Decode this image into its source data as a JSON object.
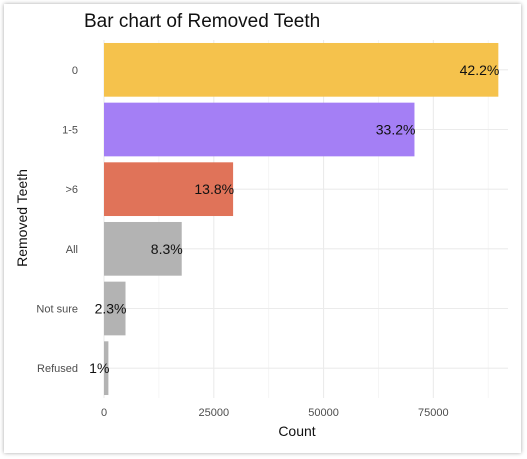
{
  "chart_data": {
    "type": "bar",
    "orientation": "horizontal",
    "title": "Bar chart of Removed Teeth",
    "xlabel": "Count",
    "ylabel": "Removed Teeth",
    "categories": [
      "0",
      "1-5",
      ">6",
      "All",
      "Not sure",
      "Refused"
    ],
    "values": [
      89800,
      70700,
      29400,
      17700,
      4900,
      1000
    ],
    "labels": [
      "42.2%",
      "33.2%",
      "13.8%",
      "8.3%",
      "2.3%",
      "1%"
    ],
    "colors": [
      "#F5C24C",
      "#A47FF5",
      "#E07359",
      "#B3B3B3",
      "#B3B3B3",
      "#B3B3B3"
    ],
    "xlim": [
      0,
      92000
    ],
    "xticks": [
      0,
      25000,
      50000,
      75000
    ],
    "xtick_labels": [
      "0",
      "25000",
      "50000",
      "75000"
    ],
    "grid": true,
    "legend": "none"
  }
}
